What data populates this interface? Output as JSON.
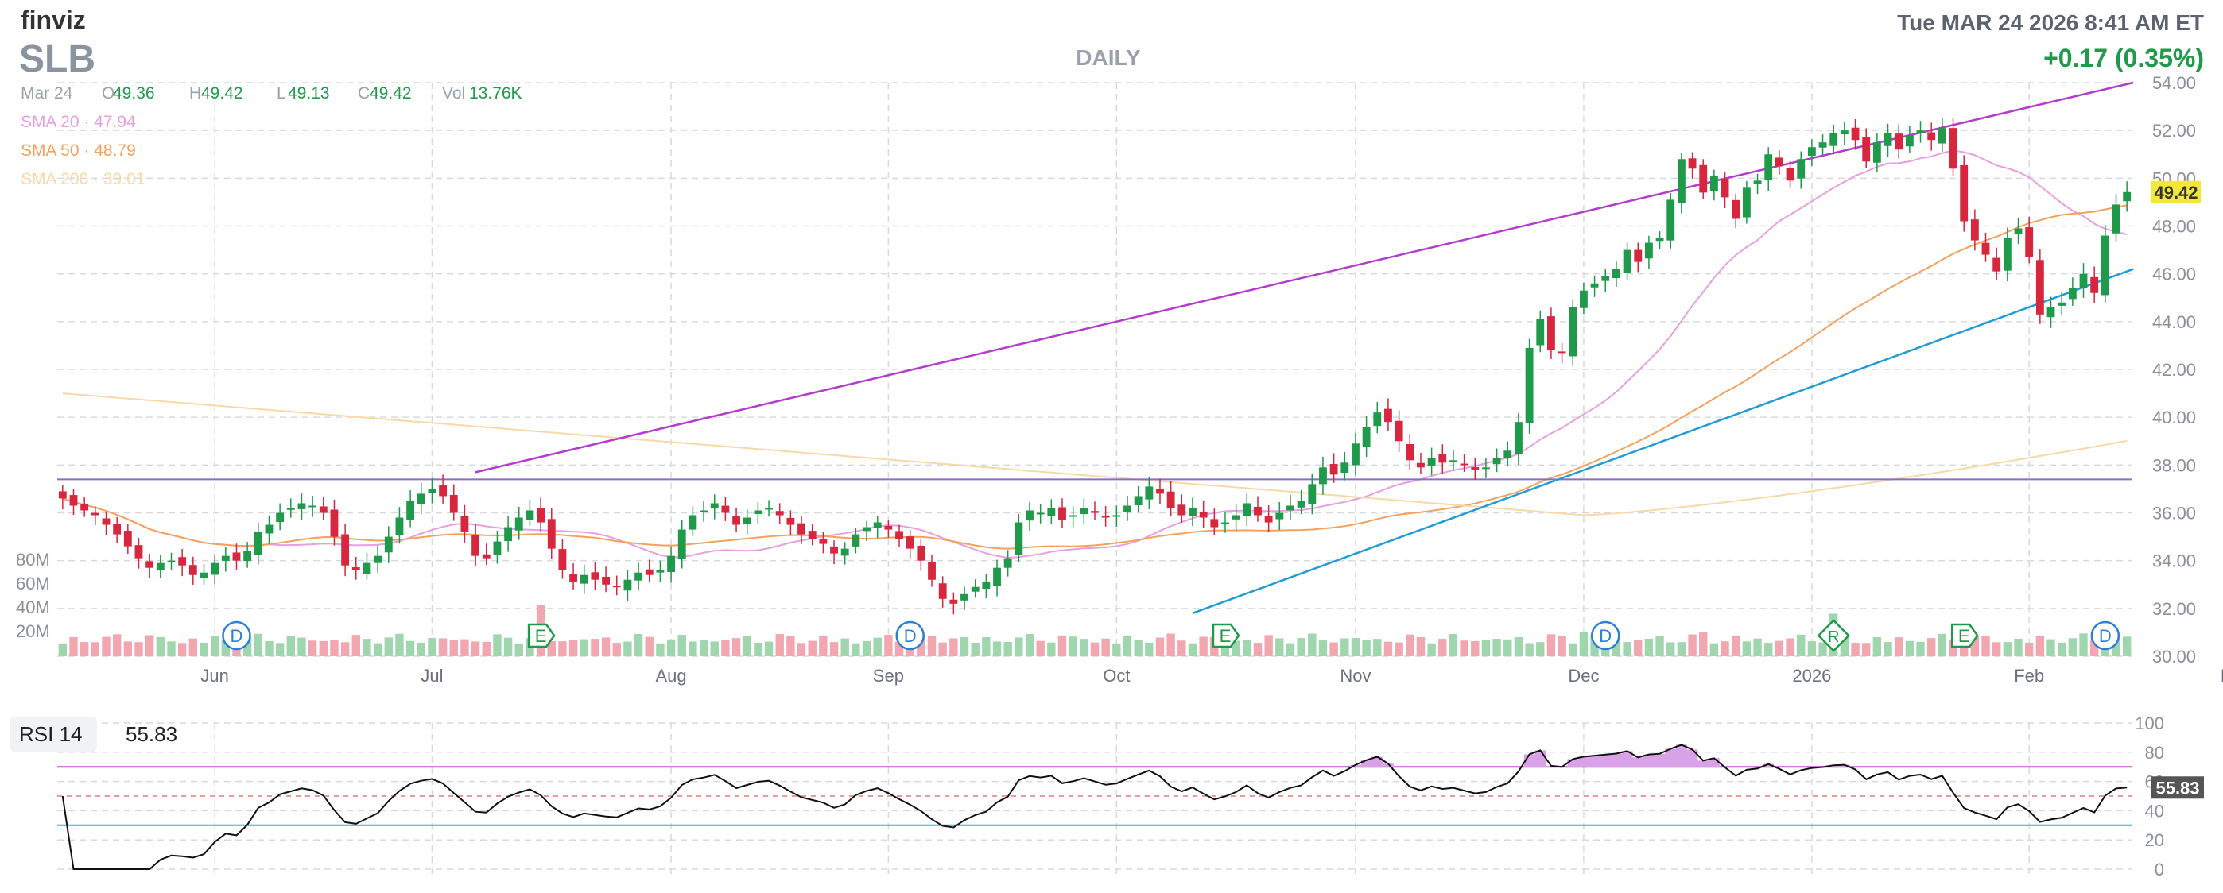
{
  "header": {
    "logo": "finviz",
    "ticker": "SLB",
    "timeframe": "DAILY",
    "datetime": "Tue MAR 24 2026 8:41 AM ET",
    "change": "+0.17 (0.35%)"
  },
  "ohlc": {
    "date": "Mar 24",
    "open_label": "O",
    "open": "49.36",
    "high_label": "H",
    "high": "49.42",
    "low_label": "L",
    "low": "49.13",
    "close_label": "C",
    "close": "49.42",
    "vol_label": "Vol",
    "vol": "13.76K"
  },
  "sma": [
    {
      "label": "SMA 20",
      "value": "47.94",
      "color": "#e89fe0"
    },
    {
      "label": "SMA 50",
      "value": "48.79",
      "color": "#f5a15c"
    },
    {
      "label": "SMA 200",
      "value": "39.01",
      "color": "#f8d8a6"
    }
  ],
  "colors": {
    "up": "#1e9a4a",
    "down": "#d7263d",
    "vol_up": "#9fd6ad",
    "vol_down": "#f1a6b0",
    "upper_trend": "#b43ccc",
    "lower_trend": "#1f9bd6",
    "horizontal": "#8b6cc9",
    "price_tag": "#f3e83a"
  },
  "price_axis": {
    "ticks": [
      "54.00",
      "52.00",
      "50.00",
      "48.00",
      "46.00",
      "44.00",
      "42.00",
      "40.00",
      "38.00",
      "36.00",
      "34.00",
      "32.00",
      "30.00"
    ],
    "last_price": "49.42"
  },
  "volume_axis": {
    "ticks": [
      "80M",
      "60M",
      "40M",
      "20M"
    ]
  },
  "x_axis": {
    "months": [
      {
        "label": "Jun",
        "index": 14
      },
      {
        "label": "Jul",
        "index": 34
      },
      {
        "label": "Aug",
        "index": 56
      },
      {
        "label": "Sep",
        "index": 76
      },
      {
        "label": "Oct",
        "index": 97
      },
      {
        "label": "Nov",
        "index": 119
      },
      {
        "label": "Dec",
        "index": 140
      },
      {
        "label": "2026",
        "index": 161
      },
      {
        "label": "Feb",
        "index": 181
      },
      {
        "label": "Mar",
        "index": 200
      }
    ]
  },
  "events": [
    {
      "type": "D",
      "index": 16
    },
    {
      "type": "E",
      "index": 44
    },
    {
      "type": "D",
      "index": 78
    },
    {
      "type": "E",
      "index": 107
    },
    {
      "type": "D",
      "index": 142
    },
    {
      "type": "R",
      "index": 163
    },
    {
      "type": "E",
      "index": 175
    },
    {
      "type": "D",
      "index": 188
    }
  ],
  "rsi": {
    "label": "RSI 14",
    "value": "55.83",
    "ticks": [
      "100",
      "80",
      "60",
      "40",
      "20",
      "0"
    ],
    "overbought": 70,
    "oversold": 30
  },
  "chart_data": {
    "type": "candlestick",
    "ylim": [
      30,
      54
    ],
    "closes": [
      36.6,
      36.3,
      36.1,
      35.9,
      35.5,
      35.1,
      34.6,
      34.1,
      33.7,
      33.9,
      34.0,
      33.8,
      33.4,
      33.5,
      33.9,
      34.2,
      34.0,
      34.4,
      35.2,
      35.5,
      36.0,
      36.2,
      36.4,
      36.3,
      36.0,
      35.0,
      33.8,
      33.6,
      33.9,
      34.2,
      35.0,
      35.8,
      36.5,
      36.8,
      37.0,
      36.7,
      36.0,
      35.2,
      34.2,
      34.1,
      34.8,
      35.4,
      35.8,
      36.1,
      35.6,
      34.5,
      33.6,
      33.1,
      33.4,
      33.2,
      33.0,
      32.9,
      33.2,
      33.5,
      33.4,
      33.6,
      34.2,
      35.3,
      35.9,
      36.1,
      36.4,
      36.0,
      35.5,
      35.8,
      36.1,
      36.2,
      35.9,
      35.5,
      35.1,
      34.9,
      34.7,
      34.3,
      34.5,
      35.1,
      35.4,
      35.6,
      35.3,
      34.9,
      34.5,
      34.0,
      33.2,
      32.4,
      32.2,
      32.6,
      32.9,
      33.1,
      33.7,
      34.1,
      35.6,
      36.1,
      36.0,
      36.2,
      35.7,
      35.9,
      36.2,
      36.0,
      35.8,
      35.9,
      36.3,
      36.7,
      37.1,
      36.8,
      36.2,
      35.9,
      36.2,
      35.8,
      35.4,
      35.6,
      35.9,
      36.4,
      35.9,
      35.6,
      36.0,
      36.3,
      36.5,
      37.2,
      37.9,
      37.6,
      38.1,
      38.9,
      39.6,
      40.2,
      39.8,
      39.0,
      38.2,
      37.9,
      38.3,
      38.1,
      38.2,
      38.0,
      37.8,
      37.9,
      38.3,
      38.6,
      39.8,
      42.9,
      44.1,
      42.8,
      42.7,
      44.6,
      45.3,
      45.6,
      45.9,
      46.2,
      47.0,
      46.5,
      47.3,
      47.5,
      49.1,
      50.8,
      50.4,
      49.4,
      50.1,
      49.2,
      48.3,
      49.6,
      49.9,
      51.0,
      50.5,
      49.9,
      50.8,
      51.3,
      51.5,
      51.9,
      52.0,
      51.6,
      50.7,
      51.5,
      51.9,
      51.2,
      51.8,
      52.0,
      51.6,
      52.1,
      50.4,
      48.2,
      47.4,
      46.8,
      46.1,
      47.5,
      47.9,
      46.7,
      44.3,
      44.6,
      44.8,
      45.4,
      46.0,
      45.2,
      47.6,
      48.9,
      49.42
    ],
    "sma20_end": 47.94,
    "sma50_end": 48.79,
    "sma200_end": 39.01
  }
}
